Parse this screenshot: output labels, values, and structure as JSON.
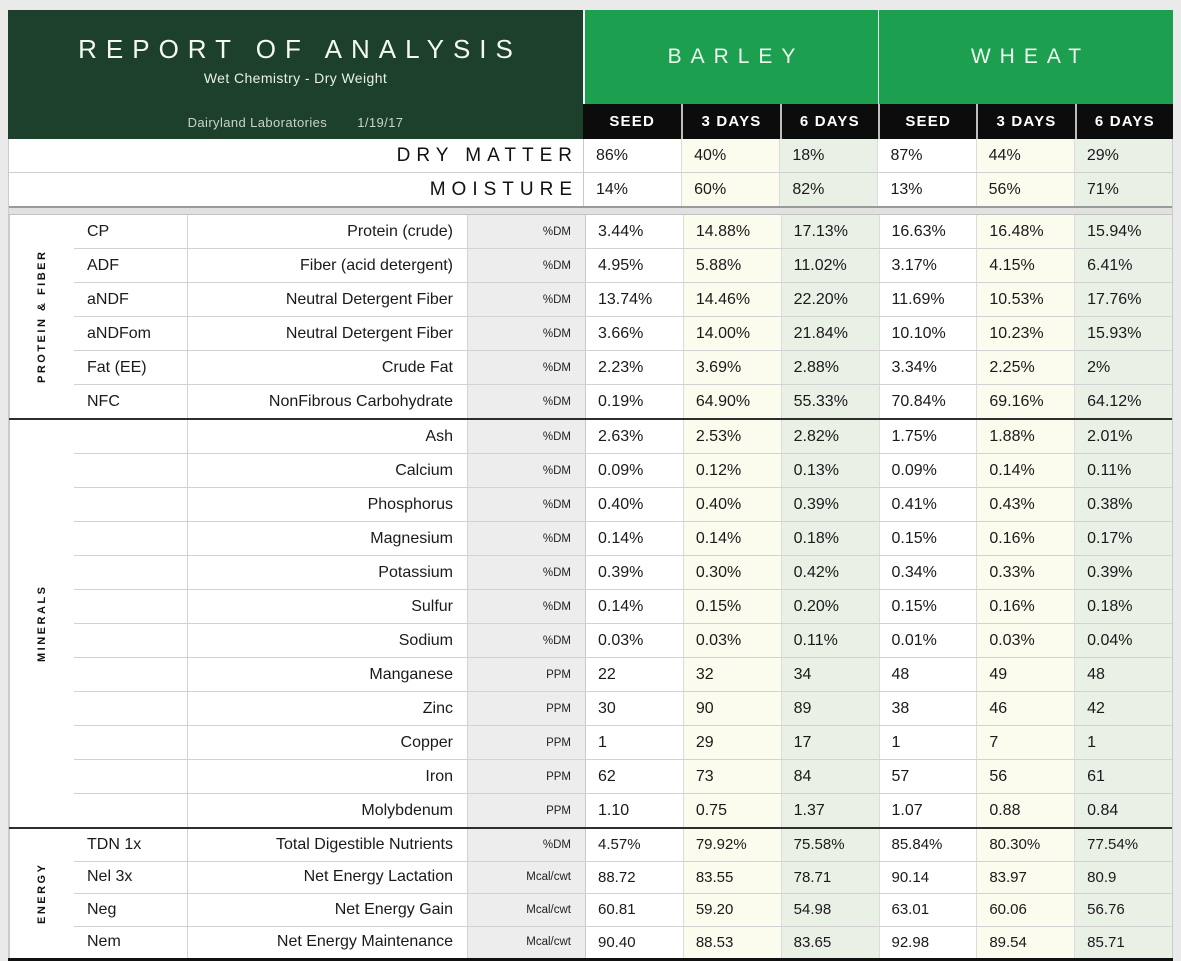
{
  "report": {
    "title": "REPORT OF ANALYSIS",
    "subtitle": "Wet Chemistry - Dry Weight",
    "lab": "Dairyland Laboratories",
    "date": "1/19/17"
  },
  "groups": [
    {
      "label": "BARLEY"
    },
    {
      "label": "WHEAT"
    }
  ],
  "column_headers": [
    {
      "label": "SEED"
    },
    {
      "label": "3 DAYS"
    },
    {
      "label": "6 DAYS"
    },
    {
      "label": "SEED"
    },
    {
      "label": "3 DAYS"
    },
    {
      "label": "6 DAYS"
    }
  ],
  "summary_rows": [
    {
      "label": "DRY MATTER",
      "values": [
        "86%",
        "40%",
        "18%",
        "87%",
        "44%",
        "29%"
      ]
    },
    {
      "label": "MOISTURE",
      "values": [
        "14%",
        "60%",
        "82%",
        "13%",
        "56%",
        "71%"
      ]
    }
  ],
  "sections": {
    "protein": {
      "label": "PROTEIN & FIBER",
      "rows": [
        {
          "abbr": "CP",
          "desc": "Protein (crude)",
          "unit": "%DM",
          "values": [
            "3.44%",
            "14.88%",
            "17.13%",
            "16.63%",
            "16.48%",
            "15.94%"
          ]
        },
        {
          "abbr": "ADF",
          "desc": "Fiber (acid detergent)",
          "unit": "%DM",
          "values": [
            "4.95%",
            "5.88%",
            "11.02%",
            "3.17%",
            "4.15%",
            "6.41%"
          ]
        },
        {
          "abbr": "aNDF",
          "desc": "Neutral Detergent Fiber",
          "unit": "%DM",
          "values": [
            "13.74%",
            "14.46%",
            "22.20%",
            "11.69%",
            "10.53%",
            "17.76%"
          ]
        },
        {
          "abbr": "aNDFom",
          "desc": "Neutral Detergent Fiber",
          "unit": "%DM",
          "values": [
            "3.66%",
            "14.00%",
            "21.84%",
            "10.10%",
            "10.23%",
            "15.93%"
          ]
        },
        {
          "abbr": "Fat (EE)",
          "desc": "Crude Fat",
          "unit": "%DM",
          "values": [
            "2.23%",
            "3.69%",
            "2.88%",
            "3.34%",
            "2.25%",
            "2%"
          ]
        },
        {
          "abbr": "NFC",
          "desc": "NonFibrous Carbohydrate",
          "unit": "%DM",
          "values": [
            "0.19%",
            "64.90%",
            "55.33%",
            "70.84%",
            "69.16%",
            "64.12%"
          ]
        }
      ]
    },
    "minerals": {
      "label": "MINERALS",
      "rows": [
        {
          "abbr": "",
          "desc": "Ash",
          "unit": "%DM",
          "values": [
            "2.63%",
            "2.53%",
            "2.82%",
            "1.75%",
            "1.88%",
            "2.01%"
          ]
        },
        {
          "abbr": "",
          "desc": "Calcium",
          "unit": "%DM",
          "values": [
            "0.09%",
            "0.12%",
            "0.13%",
            "0.09%",
            "0.14%",
            "0.11%"
          ]
        },
        {
          "abbr": "",
          "desc": "Phosphorus",
          "unit": "%DM",
          "values": [
            "0.40%",
            "0.40%",
            "0.39%",
            "0.41%",
            "0.43%",
            "0.38%"
          ]
        },
        {
          "abbr": "",
          "desc": "Magnesium",
          "unit": "%DM",
          "values": [
            "0.14%",
            "0.14%",
            "0.18%",
            "0.15%",
            "0.16%",
            "0.17%"
          ]
        },
        {
          "abbr": "",
          "desc": "Potassium",
          "unit": "%DM",
          "values": [
            "0.39%",
            "0.30%",
            "0.42%",
            "0.34%",
            "0.33%",
            "0.39%"
          ]
        },
        {
          "abbr": "",
          "desc": "Sulfur",
          "unit": "%DM",
          "values": [
            "0.14%",
            "0.15%",
            "0.20%",
            "0.15%",
            "0.16%",
            "0.18%"
          ]
        },
        {
          "abbr": "",
          "desc": "Sodium",
          "unit": "%DM",
          "values": [
            "0.03%",
            "0.03%",
            "0.11%",
            "0.01%",
            "0.03%",
            "0.04%"
          ]
        },
        {
          "abbr": "",
          "desc": "Manganese",
          "unit": "PPM",
          "values": [
            "22",
            "32",
            "34",
            "48",
            "49",
            "48"
          ]
        },
        {
          "abbr": "",
          "desc": "Zinc",
          "unit": "PPM",
          "values": [
            "30",
            "90",
            "89",
            "38",
            "46",
            "42"
          ]
        },
        {
          "abbr": "",
          "desc": "Copper",
          "unit": "PPM",
          "values": [
            "1",
            "29",
            "17",
            "1",
            "7",
            "1"
          ]
        },
        {
          "abbr": "",
          "desc": "Iron",
          "unit": "PPM",
          "values": [
            "62",
            "73",
            "84",
            "57",
            "56",
            "61"
          ]
        },
        {
          "abbr": "",
          "desc": "Molybdenum",
          "unit": "PPM",
          "values": [
            "1.10",
            "0.75",
            "1.37",
            "1.07",
            "0.88",
            "0.84"
          ]
        }
      ]
    },
    "energy": {
      "label": "ENERGY",
      "rows": [
        {
          "abbr": "TDN 1x",
          "desc": "Total Digestible Nutrients",
          "unit": "%DM",
          "values": [
            "4.57%",
            "79.92%",
            "75.58%",
            "85.84%",
            "80.30%",
            "77.54%"
          ]
        },
        {
          "abbr": "Nel 3x",
          "desc": "Net Energy Lactation",
          "unit": "Mcal/cwt",
          "values": [
            "88.72",
            "83.55",
            "78.71",
            "90.14",
            "83.97",
            "80.9"
          ]
        },
        {
          "abbr": "Neg",
          "desc": "Net Energy Gain",
          "unit": "Mcal/cwt",
          "values": [
            "60.81",
            "59.20",
            "54.98",
            "63.01",
            "60.06",
            "56.76"
          ]
        },
        {
          "abbr": "Nem",
          "desc": "Net Energy Maintenance",
          "unit": "Mcal/cwt",
          "values": [
            "90.40",
            "88.53",
            "83.65",
            "92.98",
            "89.54",
            "85.71"
          ]
        }
      ]
    }
  },
  "colors": {
    "header_dark_green": "#1d402c",
    "header_bright_green": "#1ca04f",
    "subheader_black": "#0c0c0c",
    "seed_column_bg": "#ffffff",
    "three_days_column_bg": "#fbfbee",
    "six_days_column_bg": "#e9f0e6",
    "unit_column_bg": "#ededed"
  }
}
